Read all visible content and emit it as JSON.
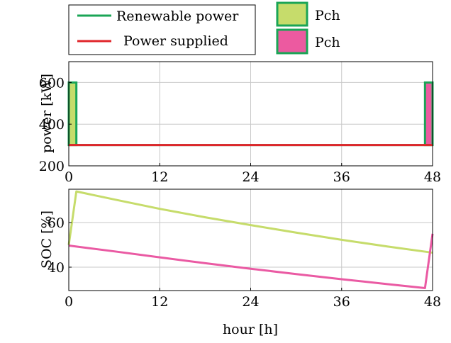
{
  "colors": {
    "renewable": "#1aa556",
    "supplied": "#e0262b",
    "pch_fill_a": "#c6dc6b",
    "pch_fill_b": "#ec5aa0",
    "pch_edge": "#1aa556",
    "soc_a": "#c6dc6b",
    "soc_b": "#ea5aa3",
    "grid": "#c8c8c8",
    "axis": "#000000"
  },
  "legend": {
    "lines": [
      "Renewable power",
      "Power supplied"
    ],
    "boxes": [
      "Pch",
      "Pch"
    ]
  },
  "chart_data": [
    {
      "type": "bar",
      "ylabel": "power [kW]",
      "xlim": [
        0,
        48
      ],
      "ylim": [
        200,
        700
      ],
      "xticks": [
        0,
        12,
        24,
        36,
        48
      ],
      "yticks": [
        200,
        400,
        600
      ],
      "grid": true,
      "series": [
        {
          "name": "Pch",
          "kind": "bar",
          "x_start": 0,
          "x_end": 1,
          "base": 300,
          "value": 600
        },
        {
          "name": "Pch",
          "kind": "bar",
          "x_start": 47,
          "x_end": 48,
          "base": 300,
          "value": 600
        },
        {
          "name": "Renewable power",
          "kind": "line",
          "x": [
            0,
            48
          ],
          "y": [
            300,
            300
          ]
        },
        {
          "name": "Power supplied",
          "kind": "line",
          "x": [
            0,
            48
          ],
          "y": [
            300,
            300
          ]
        }
      ]
    },
    {
      "type": "line",
      "xlabel": "hour [h]",
      "ylabel": "SOC [%]",
      "xlim": [
        0,
        48
      ],
      "ylim": [
        29.5,
        75
      ],
      "xticks": [
        0,
        12,
        24,
        36,
        48
      ],
      "yticks": [
        40,
        60
      ],
      "grid": true,
      "series": [
        {
          "kind": "soc_a",
          "x": [
            0,
            1,
            6,
            12,
            18,
            24,
            30,
            36,
            42,
            48
          ],
          "y": [
            50,
            74,
            70.4,
            66.2,
            62.4,
            58.9,
            55.5,
            52.3,
            49.3,
            46.5
          ]
        },
        {
          "kind": "soc_b",
          "x": [
            0,
            6,
            12,
            18,
            24,
            30,
            36,
            42,
            47,
            48
          ],
          "y": [
            49.7,
            47.1,
            44.4,
            41.8,
            39.3,
            36.9,
            34.6,
            32.4,
            30.6,
            55
          ]
        }
      ]
    }
  ]
}
